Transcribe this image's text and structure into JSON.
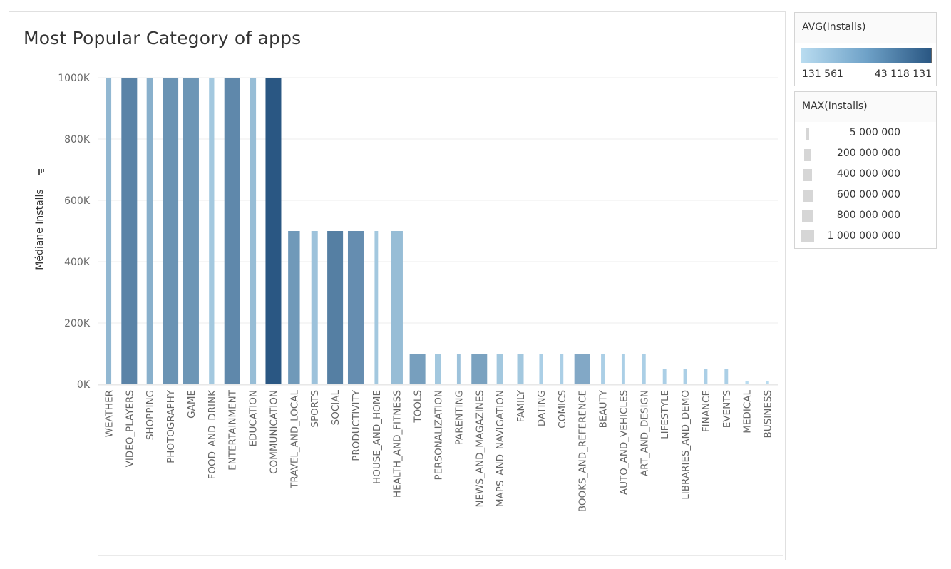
{
  "title": "Most Popular Category of apps",
  "chart_data": {
    "type": "bar",
    "title": "Most Popular Category of apps",
    "xlabel": "",
    "ylabel": "Médiane Installs",
    "ylim": [
      0,
      1000000
    ],
    "yticks": [
      {
        "value": 0,
        "label": "0K"
      },
      {
        "value": 200000,
        "label": "200K"
      },
      {
        "value": 400000,
        "label": "400K"
      },
      {
        "value": 600000,
        "label": "600K"
      },
      {
        "value": 800000,
        "label": "800K"
      },
      {
        "value": 1000000,
        "label": "1000K"
      }
    ],
    "grid": true,
    "categories": [
      "WEATHER",
      "VIDEO_PLAYERS",
      "SHOPPING",
      "PHOTOGRAPHY",
      "GAME",
      "FOOD_AND_DRINK",
      "ENTERTAINMENT",
      "EDUCATION",
      "COMMUNICATION",
      "TRAVEL_AND_LOCAL",
      "SPORTS",
      "SOCIAL",
      "PRODUCTIVITY",
      "HOUSE_AND_HOME",
      "HEALTH_AND_FITNESS",
      "TOOLS",
      "PERSONALIZATION",
      "PARENTING",
      "NEWS_AND_MAGAZINES",
      "MAPS_AND_NAVIGATION",
      "FAMILY",
      "DATING",
      "COMICS",
      "BOOKS_AND_REFERENCE",
      "BEAUTY",
      "AUTO_AND_VEHICLES",
      "ART_AND_DESIGN",
      "LIFESTYLE",
      "LIBRARIES_AND_DEMO",
      "FINANCE",
      "EVENTS",
      "MEDICAL",
      "BUSINESS"
    ],
    "values": [
      1000000,
      1000000,
      1000000,
      1000000,
      1000000,
      1000000,
      1000000,
      1000000,
      1000000,
      500000,
      500000,
      500000,
      500000,
      500000,
      500000,
      100000,
      100000,
      100000,
      100000,
      100000,
      100000,
      100000,
      100000,
      100000,
      100000,
      100000,
      100000,
      50000,
      50000,
      50000,
      50000,
      10000,
      10000
    ],
    "avg_installs": [
      5000000,
      22000000,
      7000000,
      16000000,
      15000000,
      2000000,
      20000000,
      4000000,
      43118131,
      14000000,
      3000000,
      24000000,
      18000000,
      2000000,
      4000000,
      12000000,
      2000000,
      3000000,
      11000000,
      2000000,
      2000000,
      1000000,
      1000000,
      9000000,
      1000000,
      1000000,
      1000000,
      1000000,
      1000000,
      1000000,
      1000000,
      131561,
      131561
    ],
    "max_installs": [
      50000000,
      1000000000,
      100000000,
      1000000000,
      1000000000,
      50000000,
      1000000000,
      100000000,
      1000000000,
      500000000,
      100000000,
      1000000000,
      1000000000,
      10000000,
      500000000,
      1000000000,
      100000000,
      10000000,
      1000000000,
      100000000,
      100000000,
      10000000,
      10000000,
      1000000000,
      10000000,
      10000000,
      10000000,
      10000000,
      10000000,
      10000000,
      10000000,
      5000000,
      5000000
    ],
    "color_legend": {
      "title": "AVG(Installs)",
      "min_label": "131 561",
      "max_label": "43 118 131",
      "min": 131561,
      "max": 43118131,
      "color_low": "#b9dcf0",
      "color_high": "#2a5783"
    },
    "size_legend": {
      "title": "MAX(Installs)",
      "entries": [
        {
          "label": "5 000 000",
          "value": 5000000
        },
        {
          "label": "200 000 000",
          "value": 200000000
        },
        {
          "label": "400 000 000",
          "value": 400000000
        },
        {
          "label": "600 000 000",
          "value": 600000000
        },
        {
          "label": "800 000 000",
          "value": 800000000
        },
        {
          "label": "1 000 000 000",
          "value": 1000000000
        }
      ]
    }
  }
}
